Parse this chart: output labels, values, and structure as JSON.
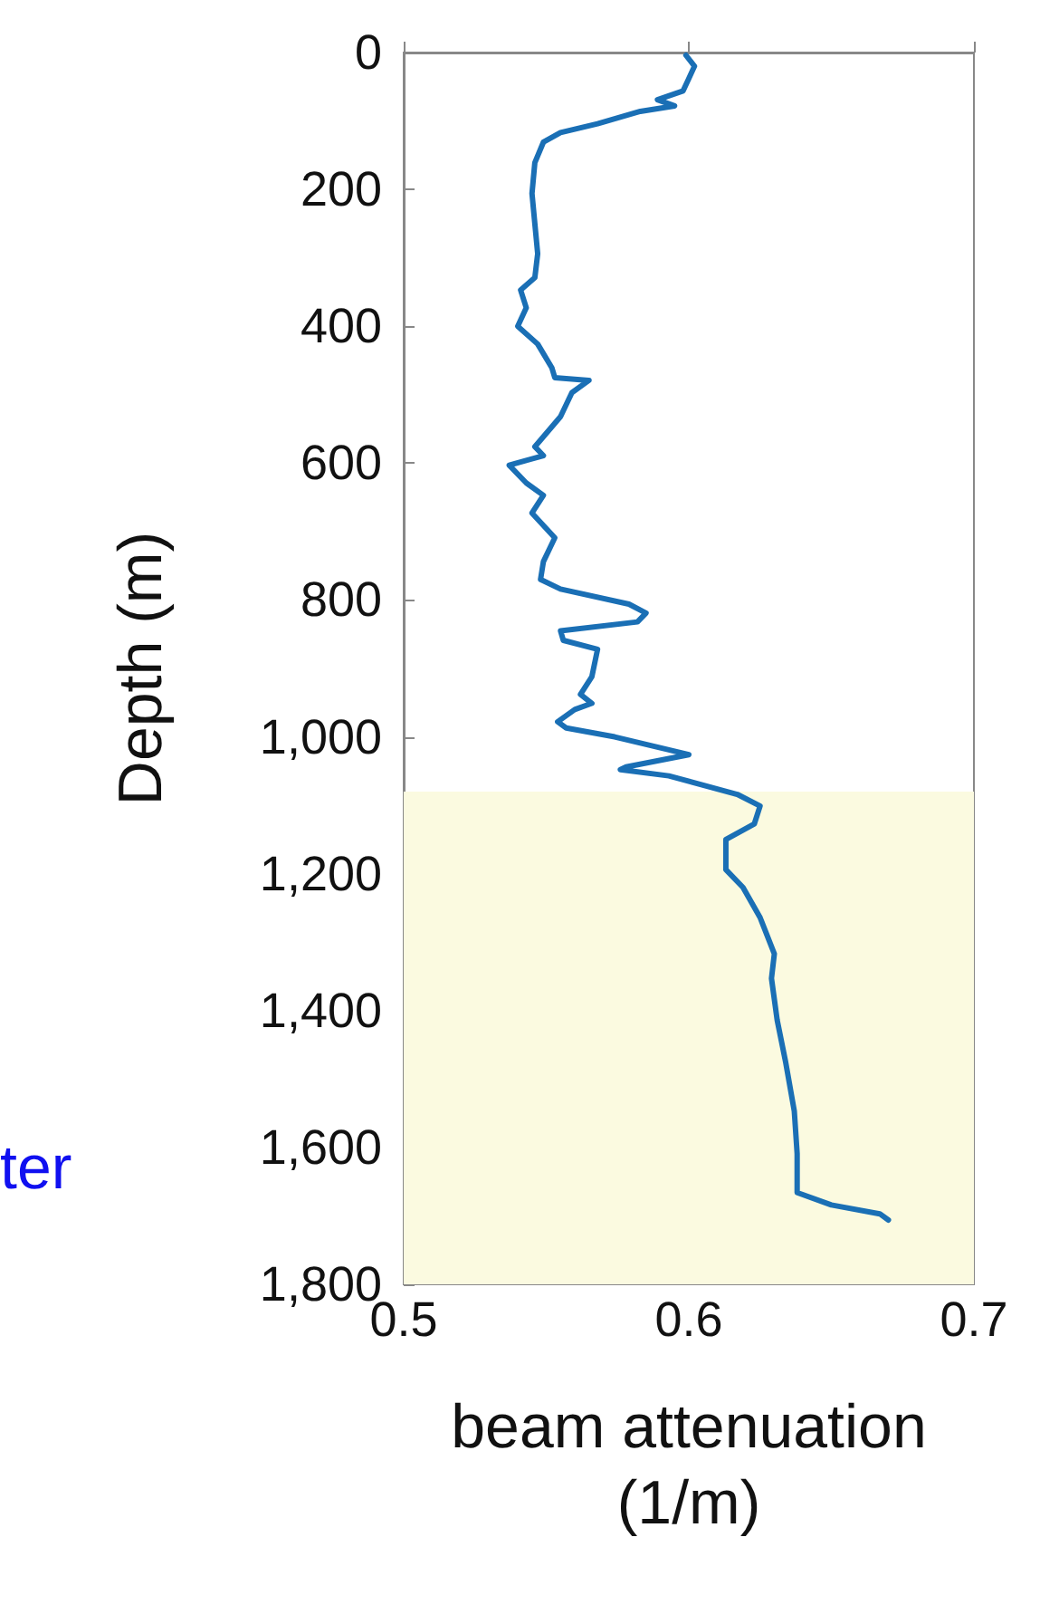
{
  "chart_data": {
    "type": "line",
    "xlabel": "beam attenuation\n(1/m)",
    "ylabel": "Depth (m)",
    "annotations": [
      "ter"
    ],
    "series": [
      {
        "color": "#1a6fb5",
        "x": [
          0.599,
          0.602,
          0.6,
          0.598,
          0.589,
          0.595,
          0.583,
          0.568,
          0.555,
          0.549,
          0.546,
          0.545,
          0.546,
          0.547,
          0.546,
          0.541,
          0.543,
          0.54,
          0.547,
          0.552,
          0.553,
          0.565,
          0.559,
          0.555,
          0.546,
          0.549,
          0.537,
          0.543,
          0.549,
          0.545,
          0.553,
          0.549,
          0.548,
          0.555,
          0.579,
          0.585,
          0.582,
          0.555,
          0.556,
          0.568,
          0.566,
          0.562,
          0.566,
          0.56,
          0.554,
          0.557,
          0.574,
          0.6,
          0.578,
          0.576,
          0.593,
          0.617,
          0.625,
          0.623,
          0.613,
          0.613,
          0.619,
          0.625,
          0.63,
          0.629,
          0.631,
          0.634,
          0.637,
          0.638,
          0.638,
          0.65,
          0.667,
          0.67
        ],
        "values": [
          4,
          20,
          38,
          56,
          69,
          78,
          86,
          104,
          117,
          131,
          161,
          206,
          250,
          294,
          329,
          347,
          373,
          400,
          426,
          461,
          475,
          479,
          497,
          532,
          576,
          589,
          603,
          629,
          647,
          673,
          709,
          744,
          770,
          784,
          806,
          819,
          832,
          845,
          859,
          872,
          912,
          938,
          951,
          960,
          978,
          987,
          1000,
          1026,
          1044,
          1048,
          1057,
          1084,
          1101,
          1127,
          1150,
          1194,
          1220,
          1264,
          1317,
          1353,
          1414,
          1476,
          1547,
          1609,
          1666,
          1684,
          1697,
          1706
        ]
      }
    ],
    "xlim": [
      0.5,
      0.7
    ],
    "xticks": [
      0.5,
      0.6,
      0.7
    ],
    "ylim": [
      1800,
      0
    ],
    "yticks": [
      0,
      200,
      400,
      600,
      800,
      {
        "value": 1000,
        "label": "1,000"
      },
      {
        "value": 1200,
        "label": "1,200"
      },
      {
        "value": 1400,
        "label": "1,400"
      },
      {
        "value": 1600,
        "label": "1,600"
      },
      {
        "value": 1800,
        "label": "1,800"
      }
    ],
    "bands": [
      {
        "axis": "y",
        "from": 1080,
        "to": 1800,
        "color": "#fbfae0"
      }
    ],
    "grid": false,
    "marker": "none",
    "line_style": "solid"
  }
}
